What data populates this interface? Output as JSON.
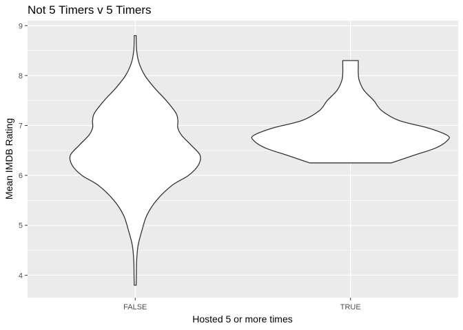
{
  "chart_data": {
    "type": "violin",
    "title": "Not 5 Timers v 5 Timers",
    "xlabel": "Hosted 5 or more times",
    "ylabel": "Mean IMDB Rating",
    "categories": [
      "FALSE",
      "TRUE"
    ],
    "y_ticks": [
      4,
      5,
      6,
      7,
      8,
      9
    ],
    "ylim": [
      3.55,
      9.1
    ],
    "grid": true,
    "colors": {
      "panel_background": "#ebebeb",
      "grid_line": "#ffffff",
      "violin_fill": "#ffffff",
      "violin_outline": "#333333",
      "tick_label": "#4d4d4d"
    },
    "violins": [
      {
        "category": "FALSE",
        "y_min": 3.8,
        "y_max": 8.8,
        "profile": [
          [
            3.8,
            0.01
          ],
          [
            4.0,
            0.012
          ],
          [
            4.3,
            0.015
          ],
          [
            4.6,
            0.03
          ],
          [
            4.9,
            0.07
          ],
          [
            5.2,
            0.12
          ],
          [
            5.5,
            0.22
          ],
          [
            5.8,
            0.38
          ],
          [
            6.0,
            0.55
          ],
          [
            6.2,
            0.65
          ],
          [
            6.4,
            0.67
          ],
          [
            6.6,
            0.58
          ],
          [
            6.8,
            0.48
          ],
          [
            6.95,
            0.44
          ],
          [
            7.1,
            0.44
          ],
          [
            7.25,
            0.42
          ],
          [
            7.5,
            0.32
          ],
          [
            7.75,
            0.2
          ],
          [
            8.0,
            0.1
          ],
          [
            8.25,
            0.04
          ],
          [
            8.5,
            0.015
          ],
          [
            8.8,
            0.01
          ]
        ]
      },
      {
        "category": "TRUE",
        "y_min": 6.25,
        "y_max": 8.3,
        "profile": [
          [
            6.25,
            0.42
          ],
          [
            6.4,
            0.65
          ],
          [
            6.55,
            0.88
          ],
          [
            6.7,
            1.0
          ],
          [
            6.8,
            1.0
          ],
          [
            6.95,
            0.8
          ],
          [
            7.1,
            0.5
          ],
          [
            7.3,
            0.32
          ],
          [
            7.5,
            0.24
          ],
          [
            7.7,
            0.14
          ],
          [
            7.9,
            0.09
          ],
          [
            8.05,
            0.08
          ],
          [
            8.2,
            0.08
          ],
          [
            8.3,
            0.08
          ]
        ]
      }
    ]
  }
}
